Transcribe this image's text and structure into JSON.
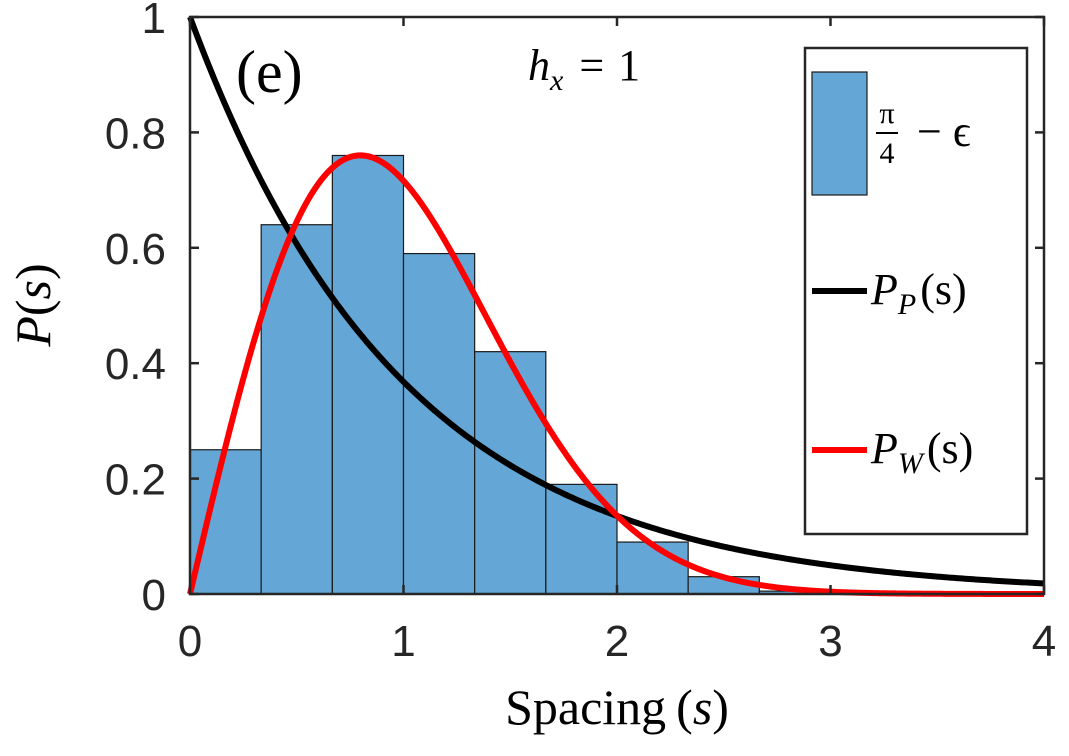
{
  "chart_data": {
    "type": "bar",
    "panel_label": "(e)",
    "annotation": {
      "symbol": "h",
      "subscript": "x",
      "relation": "=",
      "value": "1"
    },
    "xlabel": {
      "text": "Spacing",
      "var": "s"
    },
    "ylabel": {
      "text": "P",
      "var": "s"
    },
    "xlim": [
      0,
      4
    ],
    "ylim": [
      0,
      1
    ],
    "xticks": [
      "0",
      "1",
      "2",
      "3",
      "4"
    ],
    "yticks": [
      "0",
      "0.2",
      "0.4",
      "0.6",
      "0.8",
      "1"
    ],
    "bin_width": 0.3333,
    "bins": [
      {
        "x0": 0.0,
        "value": 0.25
      },
      {
        "x0": 0.3333,
        "value": 0.64
      },
      {
        "x0": 0.6667,
        "value": 0.76
      },
      {
        "x0": 1.0,
        "value": 0.59
      },
      {
        "x0": 1.3333,
        "value": 0.42
      },
      {
        "x0": 1.6667,
        "value": 0.19
      },
      {
        "x0": 2.0,
        "value": 0.09
      },
      {
        "x0": 2.3333,
        "value": 0.03
      },
      {
        "x0": 2.6667,
        "value": 0.005
      },
      {
        "x0": 3.0,
        "value": 0.002
      },
      {
        "x0": 3.3333,
        "value": 0.0
      },
      {
        "x0": 3.6667,
        "value": 0.0
      }
    ],
    "series": [
      {
        "name": "P_P(s)",
        "function": "exp(-s)",
        "color": "#000000"
      },
      {
        "name": "P_W(s)",
        "function": "(pi/2) s exp(-pi s^2 / 4)",
        "color": "#ff0000"
      }
    ],
    "legend": {
      "placement": "top-right",
      "entries": [
        {
          "kind": "patch",
          "num": "π",
          "den": "4",
          "rest": "− ϵ",
          "color": "#64a6d5"
        },
        {
          "kind": "line",
          "main": "P",
          "sub": "P",
          "arg": "(s)",
          "color": "#000000"
        },
        {
          "kind": "line",
          "main": "P",
          "sub": "W",
          "arg": "(s)",
          "color": "#ff0000"
        }
      ]
    },
    "bar_color": "#64a6d5"
  }
}
